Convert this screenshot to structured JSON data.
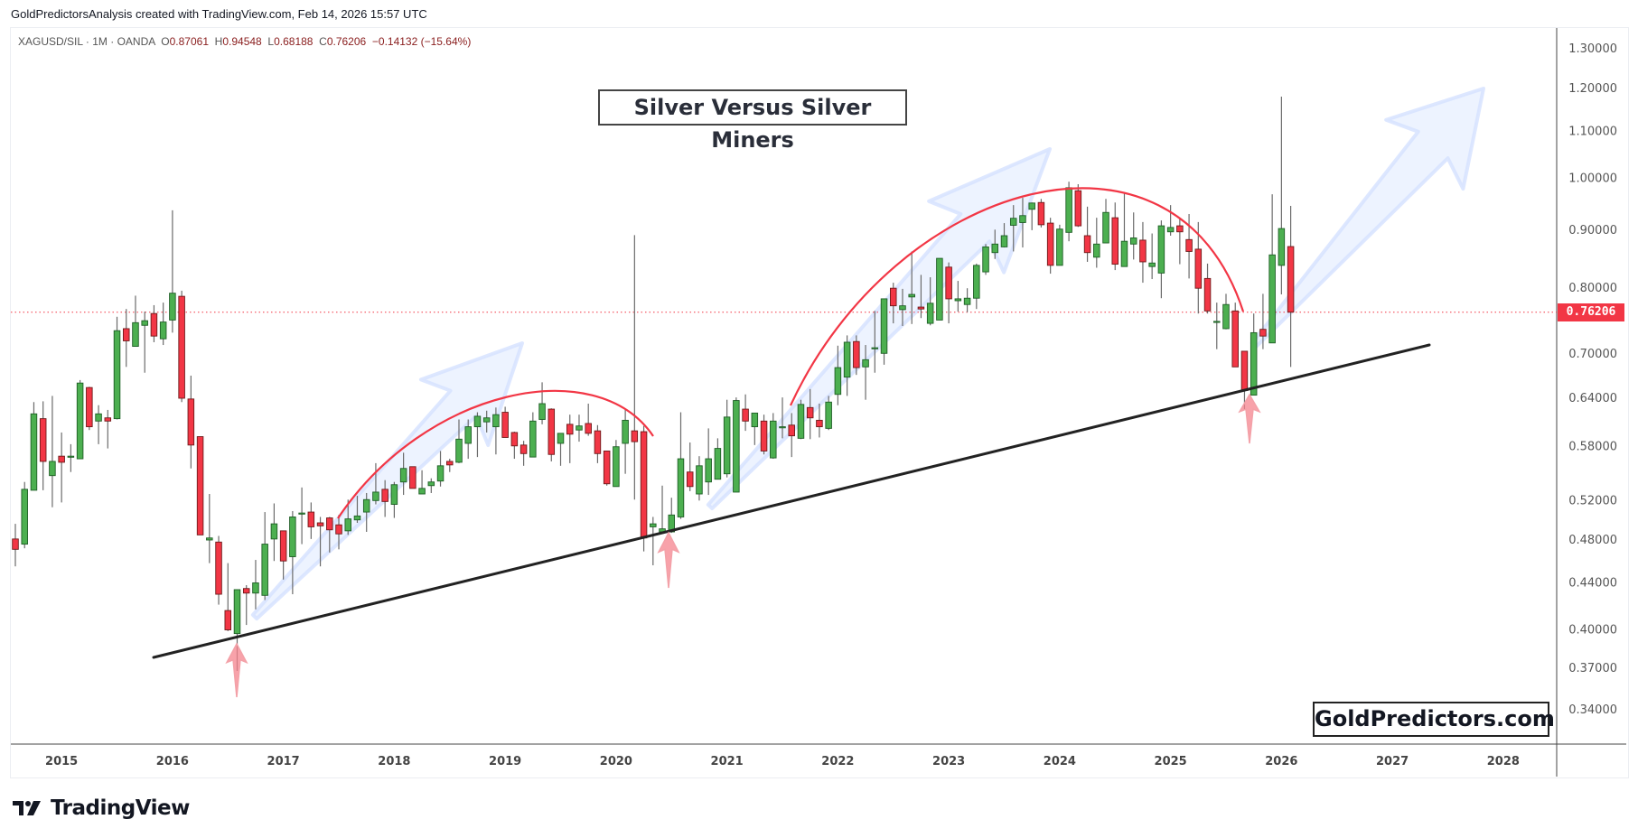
{
  "header": {
    "attribution": "GoldPredictorsAnalysis created with TradingView.com, Feb 14, 2026 15:57 UTC"
  },
  "legend": {
    "symbol": "XAGUSD/SIL · 1M · OANDA",
    "open_label": "O",
    "open": "0.87061",
    "high_label": "H",
    "high": "0.94548",
    "low_label": "L",
    "low": "0.68188",
    "close_label": "C",
    "close": "0.76206",
    "change": "−0.14132 (−15.64%)"
  },
  "annotation_title": "Silver Versus Silver Miners",
  "watermark": "GoldPredictors.com",
  "footer": {
    "logo_text": "TradingView",
    "logo_icon": "tradingview-logo-icon"
  },
  "colors": {
    "up": "#4caf50",
    "up_border": "#1e5e25",
    "down": "#f23645",
    "down_border": "#6e1a1a",
    "wick": "#6b6b6b",
    "last_price": "#f23645",
    "trendline": "#222222",
    "arc": "#f23645",
    "projection_arrow": "#dfe9ff",
    "support_arrow": "#f5838d"
  },
  "chart_data": {
    "type": "candlestick",
    "title": "Silver Versus Silver Miners",
    "y_scale": "log",
    "ylim": [
      0.32,
      1.32
    ],
    "xlim": [
      "2014-08",
      "2028-06"
    ],
    "grid": false,
    "last_price": 0.76206,
    "last_price_label": "0.76206",
    "y_ticks": [
      "1.30000",
      "1.20000",
      "1.10000",
      "1.00000",
      "0.90000",
      "0.80000",
      "0.70000",
      "0.64000",
      "0.58000",
      "0.52000",
      "0.48000",
      "0.44000",
      "0.40000",
      "0.37000",
      "0.34000"
    ],
    "x_ticks": [
      "2015",
      "2016",
      "2017",
      "2018",
      "2019",
      "2020",
      "2021",
      "2022",
      "2023",
      "2024",
      "2025",
      "2026",
      "2027",
      "2028"
    ],
    "candles": [
      [
        "2014-08",
        0.481,
        0.496,
        0.455,
        0.471
      ],
      [
        "2014-09",
        0.476,
        0.54,
        0.472,
        0.532
      ],
      [
        "2014-10",
        0.531,
        0.635,
        0.531,
        0.62
      ],
      [
        "2014-11",
        0.614,
        0.636,
        0.531,
        0.563
      ],
      [
        "2014-12",
        0.547,
        0.643,
        0.513,
        0.563
      ],
      [
        "2015-01",
        0.569,
        0.597,
        0.518,
        0.562
      ],
      [
        "2015-02",
        0.569,
        0.583,
        0.551,
        0.569
      ],
      [
        "2015-03",
        0.566,
        0.664,
        0.566,
        0.66
      ],
      [
        "2015-04",
        0.654,
        0.655,
        0.6,
        0.604
      ],
      [
        "2015-05",
        0.611,
        0.631,
        0.583,
        0.62
      ],
      [
        "2015-06",
        0.615,
        0.625,
        0.578,
        0.611
      ],
      [
        "2015-07",
        0.614,
        0.755,
        0.613,
        0.734
      ],
      [
        "2015-08",
        0.737,
        0.767,
        0.682,
        0.719
      ],
      [
        "2015-09",
        0.711,
        0.788,
        0.711,
        0.746
      ],
      [
        "2015-10",
        0.742,
        0.763,
        0.674,
        0.749
      ],
      [
        "2015-11",
        0.76,
        0.773,
        0.717,
        0.726
      ],
      [
        "2015-12",
        0.722,
        0.777,
        0.713,
        0.747
      ],
      [
        "2016-01",
        0.75,
        0.937,
        0.731,
        0.792
      ],
      [
        "2016-02",
        0.787,
        0.796,
        0.635,
        0.64
      ],
      [
        "2016-03",
        0.639,
        0.67,
        0.555,
        0.582
      ],
      [
        "2016-04",
        0.592,
        0.592,
        0.485,
        0.485
      ],
      [
        "2016-05",
        0.48,
        0.527,
        0.458,
        0.482
      ],
      [
        "2016-06",
        0.478,
        0.484,
        0.421,
        0.43
      ],
      [
        "2016-07",
        0.416,
        0.458,
        0.399,
        0.4
      ],
      [
        "2016-08",
        0.397,
        0.434,
        0.368,
        0.434
      ],
      [
        "2016-09",
        0.435,
        0.438,
        0.404,
        0.431
      ],
      [
        "2016-10",
        0.431,
        0.461,
        0.417,
        0.44
      ],
      [
        "2016-11",
        0.429,
        0.508,
        0.425,
        0.476
      ],
      [
        "2016-12",
        0.481,
        0.517,
        0.46,
        0.496
      ],
      [
        "2017-01",
        0.489,
        0.489,
        0.443,
        0.46
      ],
      [
        "2017-02",
        0.464,
        0.509,
        0.43,
        0.503
      ],
      [
        "2017-03",
        0.507,
        0.534,
        0.476,
        0.507
      ],
      [
        "2017-04",
        0.508,
        0.518,
        0.481,
        0.493
      ],
      [
        "2017-05",
        0.497,
        0.503,
        0.455,
        0.494
      ],
      [
        "2017-06",
        0.502,
        0.503,
        0.468,
        0.49
      ],
      [
        "2017-07",
        0.495,
        0.505,
        0.471,
        0.486
      ],
      [
        "2017-08",
        0.489,
        0.521,
        0.485,
        0.501
      ],
      [
        "2017-09",
        0.5,
        0.525,
        0.497,
        0.504
      ],
      [
        "2017-10",
        0.508,
        0.528,
        0.488,
        0.521
      ],
      [
        "2017-11",
        0.52,
        0.561,
        0.516,
        0.529
      ],
      [
        "2017-12",
        0.532,
        0.542,
        0.503,
        0.519
      ],
      [
        "2018-01",
        0.516,
        0.54,
        0.502,
        0.537
      ],
      [
        "2018-02",
        0.54,
        0.573,
        0.526,
        0.555
      ],
      [
        "2018-03",
        0.557,
        0.557,
        0.533,
        0.533
      ],
      [
        "2018-04",
        0.527,
        0.553,
        0.527,
        0.533
      ],
      [
        "2018-05",
        0.536,
        0.544,
        0.528,
        0.54
      ],
      [
        "2018-06",
        0.541,
        0.575,
        0.535,
        0.558
      ],
      [
        "2018-07",
        0.563,
        0.566,
        0.551,
        0.559
      ],
      [
        "2018-08",
        0.562,
        0.613,
        0.561,
        0.589
      ],
      [
        "2018-09",
        0.584,
        0.613,
        0.566,
        0.604
      ],
      [
        "2018-10",
        0.604,
        0.622,
        0.568,
        0.617
      ],
      [
        "2018-11",
        0.61,
        0.624,
        0.597,
        0.615
      ],
      [
        "2018-12",
        0.604,
        0.628,
        0.571,
        0.619
      ],
      [
        "2019-01",
        0.622,
        0.629,
        0.591,
        0.591
      ],
      [
        "2019-02",
        0.597,
        0.598,
        0.566,
        0.581
      ],
      [
        "2019-03",
        0.582,
        0.587,
        0.558,
        0.572
      ],
      [
        "2019-04",
        0.568,
        0.622,
        0.568,
        0.611
      ],
      [
        "2019-05",
        0.613,
        0.661,
        0.607,
        0.633
      ],
      [
        "2019-06",
        0.626,
        0.627,
        0.563,
        0.571
      ],
      [
        "2019-07",
        0.584,
        0.596,
        0.558,
        0.596
      ],
      [
        "2019-08",
        0.607,
        0.619,
        0.561,
        0.595
      ],
      [
        "2019-09",
        0.6,
        0.619,
        0.586,
        0.605
      ],
      [
        "2019-10",
        0.608,
        0.633,
        0.593,
        0.596
      ],
      [
        "2019-11",
        0.599,
        0.606,
        0.561,
        0.572
      ],
      [
        "2019-12",
        0.575,
        0.575,
        0.536,
        0.538
      ],
      [
        "2020-01",
        0.535,
        0.588,
        0.535,
        0.58
      ],
      [
        "2020-02",
        0.584,
        0.625,
        0.549,
        0.612
      ],
      [
        "2020-03",
        0.599,
        0.891,
        0.521,
        0.586
      ],
      [
        "2020-04",
        0.598,
        0.605,
        0.469,
        0.482
      ],
      [
        "2020-05",
        0.493,
        0.503,
        0.456,
        0.496
      ],
      [
        "2020-06",
        0.488,
        0.536,
        0.488,
        0.491
      ],
      [
        "2020-07",
        0.488,
        0.523,
        0.487,
        0.505
      ],
      [
        "2020-08",
        0.503,
        0.622,
        0.501,
        0.566
      ],
      [
        "2020-09",
        0.551,
        0.585,
        0.53,
        0.535
      ],
      [
        "2020-10",
        0.527,
        0.569,
        0.52,
        0.558
      ],
      [
        "2020-11",
        0.54,
        0.602,
        0.526,
        0.566
      ],
      [
        "2020-12",
        0.543,
        0.59,
        0.543,
        0.578
      ],
      [
        "2021-01",
        0.549,
        0.638,
        0.545,
        0.616
      ],
      [
        "2021-02",
        0.529,
        0.641,
        0.529,
        0.637
      ],
      [
        "2021-03",
        0.626,
        0.645,
        0.599,
        0.611
      ],
      [
        "2021-04",
        0.604,
        0.621,
        0.582,
        0.621
      ],
      [
        "2021-05",
        0.611,
        0.619,
        0.571,
        0.575
      ],
      [
        "2021-06",
        0.567,
        0.621,
        0.566,
        0.611
      ],
      [
        "2021-07",
        0.604,
        0.641,
        0.59,
        0.604
      ],
      [
        "2021-08",
        0.606,
        0.621,
        0.568,
        0.593
      ],
      [
        "2021-09",
        0.59,
        0.638,
        0.589,
        0.632
      ],
      [
        "2021-10",
        0.628,
        0.652,
        0.589,
        0.615
      ],
      [
        "2021-11",
        0.612,
        0.633,
        0.591,
        0.604
      ],
      [
        "2021-12",
        0.602,
        0.643,
        0.6,
        0.635
      ],
      [
        "2022-01",
        0.645,
        0.712,
        0.631,
        0.681
      ],
      [
        "2022-02",
        0.668,
        0.727,
        0.643,
        0.717
      ],
      [
        "2022-03",
        0.718,
        0.727,
        0.671,
        0.681
      ],
      [
        "2022-04",
        0.682,
        0.713,
        0.638,
        0.692
      ],
      [
        "2022-05",
        0.709,
        0.764,
        0.674,
        0.709
      ],
      [
        "2022-06",
        0.701,
        0.783,
        0.685,
        0.783
      ],
      [
        "2022-07",
        0.8,
        0.809,
        0.745,
        0.772
      ],
      [
        "2022-08",
        0.766,
        0.799,
        0.741,
        0.772
      ],
      [
        "2022-09",
        0.786,
        0.862,
        0.744,
        0.79
      ],
      [
        "2022-10",
        0.77,
        0.822,
        0.753,
        0.767
      ],
      [
        "2022-11",
        0.745,
        0.818,
        0.742,
        0.776
      ],
      [
        "2022-12",
        0.75,
        0.85,
        0.75,
        0.85
      ],
      [
        "2023-01",
        0.835,
        0.843,
        0.745,
        0.783
      ],
      [
        "2023-02",
        0.78,
        0.812,
        0.763,
        0.783
      ],
      [
        "2023-03",
        0.774,
        0.8,
        0.762,
        0.784
      ],
      [
        "2023-04",
        0.784,
        0.841,
        0.767,
        0.838
      ],
      [
        "2023-05",
        0.827,
        0.875,
        0.822,
        0.87
      ],
      [
        "2023-06",
        0.86,
        0.901,
        0.849,
        0.875
      ],
      [
        "2023-07",
        0.87,
        0.913,
        0.869,
        0.89
      ],
      [
        "2023-08",
        0.909,
        0.947,
        0.862,
        0.922
      ],
      [
        "2023-09",
        0.914,
        0.961,
        0.869,
        0.927
      ],
      [
        "2023-10",
        0.939,
        0.952,
        0.9,
        0.951
      ],
      [
        "2023-11",
        0.952,
        0.959,
        0.905,
        0.91
      ],
      [
        "2023-12",
        0.913,
        0.923,
        0.824,
        0.838
      ],
      [
        "2024-01",
        0.838,
        0.91,
        0.838,
        0.902
      ],
      [
        "2024-02",
        0.896,
        0.993,
        0.88,
        0.981
      ],
      [
        "2024-03",
        0.975,
        0.988,
        0.906,
        0.908
      ],
      [
        "2024-04",
        0.89,
        0.944,
        0.844,
        0.86
      ],
      [
        "2024-05",
        0.852,
        0.923,
        0.834,
        0.875
      ],
      [
        "2024-06",
        0.877,
        0.959,
        0.877,
        0.933
      ],
      [
        "2024-07",
        0.923,
        0.952,
        0.83,
        0.84
      ],
      [
        "2024-08",
        0.836,
        0.972,
        0.836,
        0.88
      ],
      [
        "2024-09",
        0.875,
        0.933,
        0.848,
        0.886
      ],
      [
        "2024-10",
        0.882,
        0.915,
        0.809,
        0.844
      ],
      [
        "2024-11",
        0.836,
        0.894,
        0.815,
        0.842
      ],
      [
        "2024-12",
        0.825,
        0.918,
        0.784,
        0.908
      ],
      [
        "2025-01",
        0.897,
        0.947,
        0.89,
        0.905
      ],
      [
        "2025-02",
        0.908,
        0.92,
        0.84,
        0.897
      ],
      [
        "2025-03",
        0.883,
        0.93,
        0.816,
        0.862
      ],
      [
        "2025-04",
        0.866,
        0.915,
        0.76,
        0.8
      ],
      [
        "2025-05",
        0.816,
        0.841,
        0.76,
        0.764
      ],
      [
        "2025-06",
        0.748,
        0.777,
        0.707,
        0.748
      ],
      [
        "2025-07",
        0.737,
        0.791,
        0.736,
        0.774
      ],
      [
        "2025-08",
        0.764,
        0.777,
        0.682,
        0.682
      ],
      [
        "2025-09",
        0.704,
        0.704,
        0.626,
        0.65
      ],
      [
        "2025-10",
        0.644,
        0.76,
        0.644,
        0.731
      ],
      [
        "2025-11",
        0.736,
        0.791,
        0.707,
        0.726
      ],
      [
        "2025-12",
        0.716,
        0.968,
        0.716,
        0.856
      ],
      [
        "2026-01",
        0.838,
        1.18,
        0.79,
        0.903
      ],
      [
        "2026-02",
        0.87061,
        0.94548,
        0.68188,
        0.76206
      ]
    ]
  }
}
